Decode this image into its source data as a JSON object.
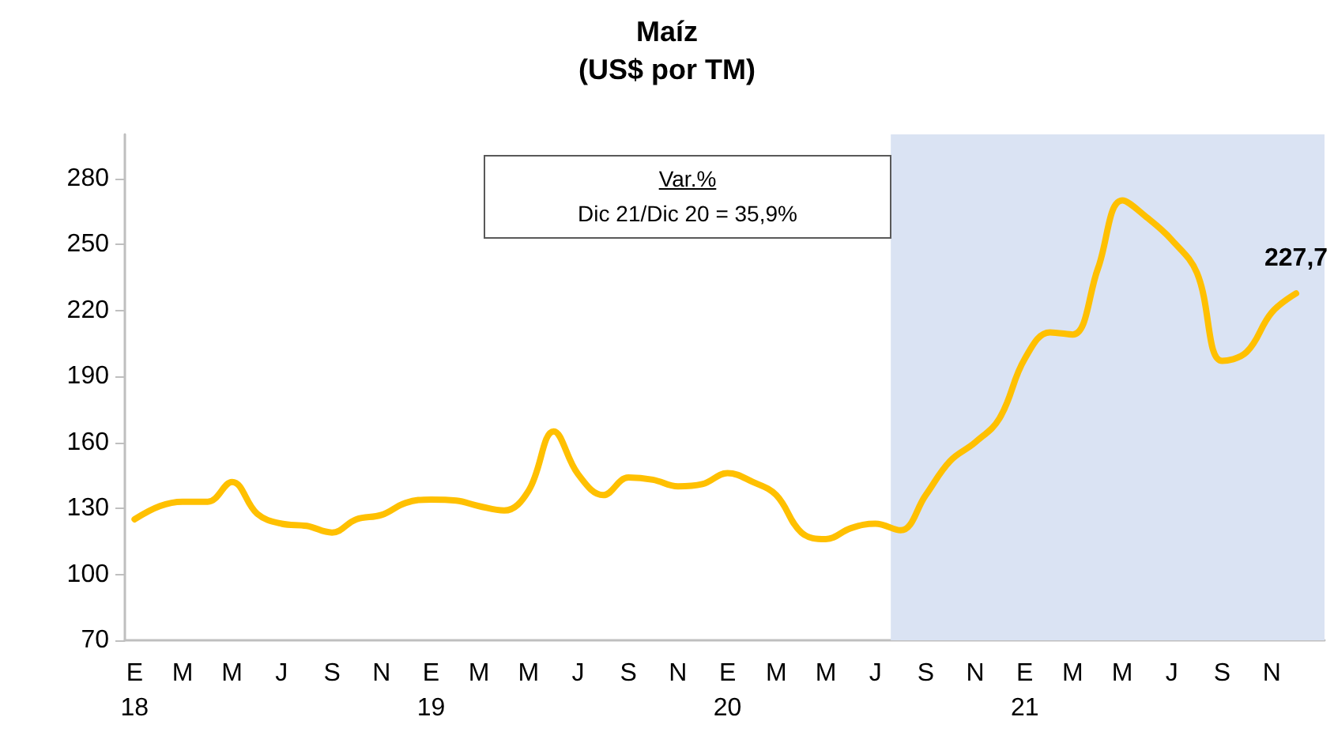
{
  "chart_data": {
    "type": "line",
    "title": "Maíz",
    "subtitle": "(US$ por TM)",
    "x": [
      "2018-01",
      "2018-02",
      "2018-03",
      "2018-04",
      "2018-05",
      "2018-06",
      "2018-07",
      "2018-08",
      "2018-09",
      "2018-10",
      "2018-11",
      "2018-12",
      "2019-01",
      "2019-02",
      "2019-03",
      "2019-04",
      "2019-05",
      "2019-06",
      "2019-07",
      "2019-08",
      "2019-09",
      "2019-10",
      "2019-11",
      "2019-12",
      "2020-01",
      "2020-02",
      "2020-03",
      "2020-04",
      "2020-05",
      "2020-06",
      "2020-07",
      "2020-08",
      "2020-09",
      "2020-10",
      "2020-11",
      "2020-12",
      "2021-01",
      "2021-02",
      "2021-03",
      "2021-04",
      "2021-05",
      "2021-06",
      "2021-07",
      "2021-08",
      "2021-09",
      "2021-10",
      "2021-11",
      "2021-12"
    ],
    "series": [
      {
        "color": "#ffc000",
        "values": [
          125,
          131,
          133,
          133,
          142,
          127.5,
          123,
          122,
          119,
          125,
          127,
          132.5,
          134,
          133.5,
          131,
          129,
          138,
          165,
          145.5,
          136,
          144,
          143,
          140,
          141,
          146,
          142,
          136,
          119,
          116,
          121,
          123,
          120,
          136,
          151.5,
          160,
          171,
          198,
          210,
          209,
          239,
          270,
          262,
          252,
          237,
          197,
          201,
          219,
          227.7
        ],
        "value_labels": [
          null,
          null,
          null,
          null,
          null,
          null,
          null,
          null,
          null,
          null,
          null,
          null,
          null,
          null,
          null,
          null,
          null,
          null,
          null,
          null,
          null,
          null,
          null,
          null,
          null,
          null,
          null,
          null,
          null,
          null,
          null,
          null,
          null,
          null,
          null,
          null,
          null,
          null,
          null,
          null,
          null,
          null,
          null,
          null,
          null,
          null,
          null,
          "227,7"
        ]
      }
    ],
    "xlim": [
      "2017-12-20",
      "2022-01-05"
    ],
    "xticks": [
      {
        "value": "2018-01",
        "label": "E\n18"
      },
      {
        "value": "2018-03",
        "label": "M"
      },
      {
        "value": "2018-05",
        "label": "M"
      },
      {
        "value": "2018-07",
        "label": "J"
      },
      {
        "value": "2018-09",
        "label": "S"
      },
      {
        "value": "2018-11",
        "label": "N"
      },
      {
        "value": "2019-01",
        "label": "E\n19"
      },
      {
        "value": "2019-03",
        "label": "M"
      },
      {
        "value": "2019-05",
        "label": "M"
      },
      {
        "value": "2019-07",
        "label": "J"
      },
      {
        "value": "2019-09",
        "label": "S"
      },
      {
        "value": "2019-11",
        "label": "N"
      },
      {
        "value": "2020-01",
        "label": "E\n20"
      },
      {
        "value": "2020-03",
        "label": "M"
      },
      {
        "value": "2020-05",
        "label": "M"
      },
      {
        "value": "2020-07",
        "label": "J"
      },
      {
        "value": "2020-09",
        "label": "S"
      },
      {
        "value": "2020-11",
        "label": "N"
      },
      {
        "value": "2021-01",
        "label": "E\n21"
      },
      {
        "value": "2021-03",
        "label": "M"
      },
      {
        "value": "2021-05",
        "label": "M"
      },
      {
        "value": "2021-07",
        "label": "J"
      },
      {
        "value": "2021-09",
        "label": "S"
      },
      {
        "value": "2021-11",
        "label": "N"
      }
    ],
    "ylim": [
      70,
      300
    ],
    "yticks": [
      70,
      100,
      130,
      160,
      190,
      220,
      250,
      280
    ],
    "bands": [
      {
        "axis": "x",
        "from": "2020-07-20",
        "to": "2022-01-05",
        "color": "#dae3f3"
      }
    ],
    "annotations": [
      "Var.%",
      "Dic 21/Dic 20 = 35,9%"
    ],
    "grid": false,
    "marker": "none",
    "line_style": "solid"
  }
}
